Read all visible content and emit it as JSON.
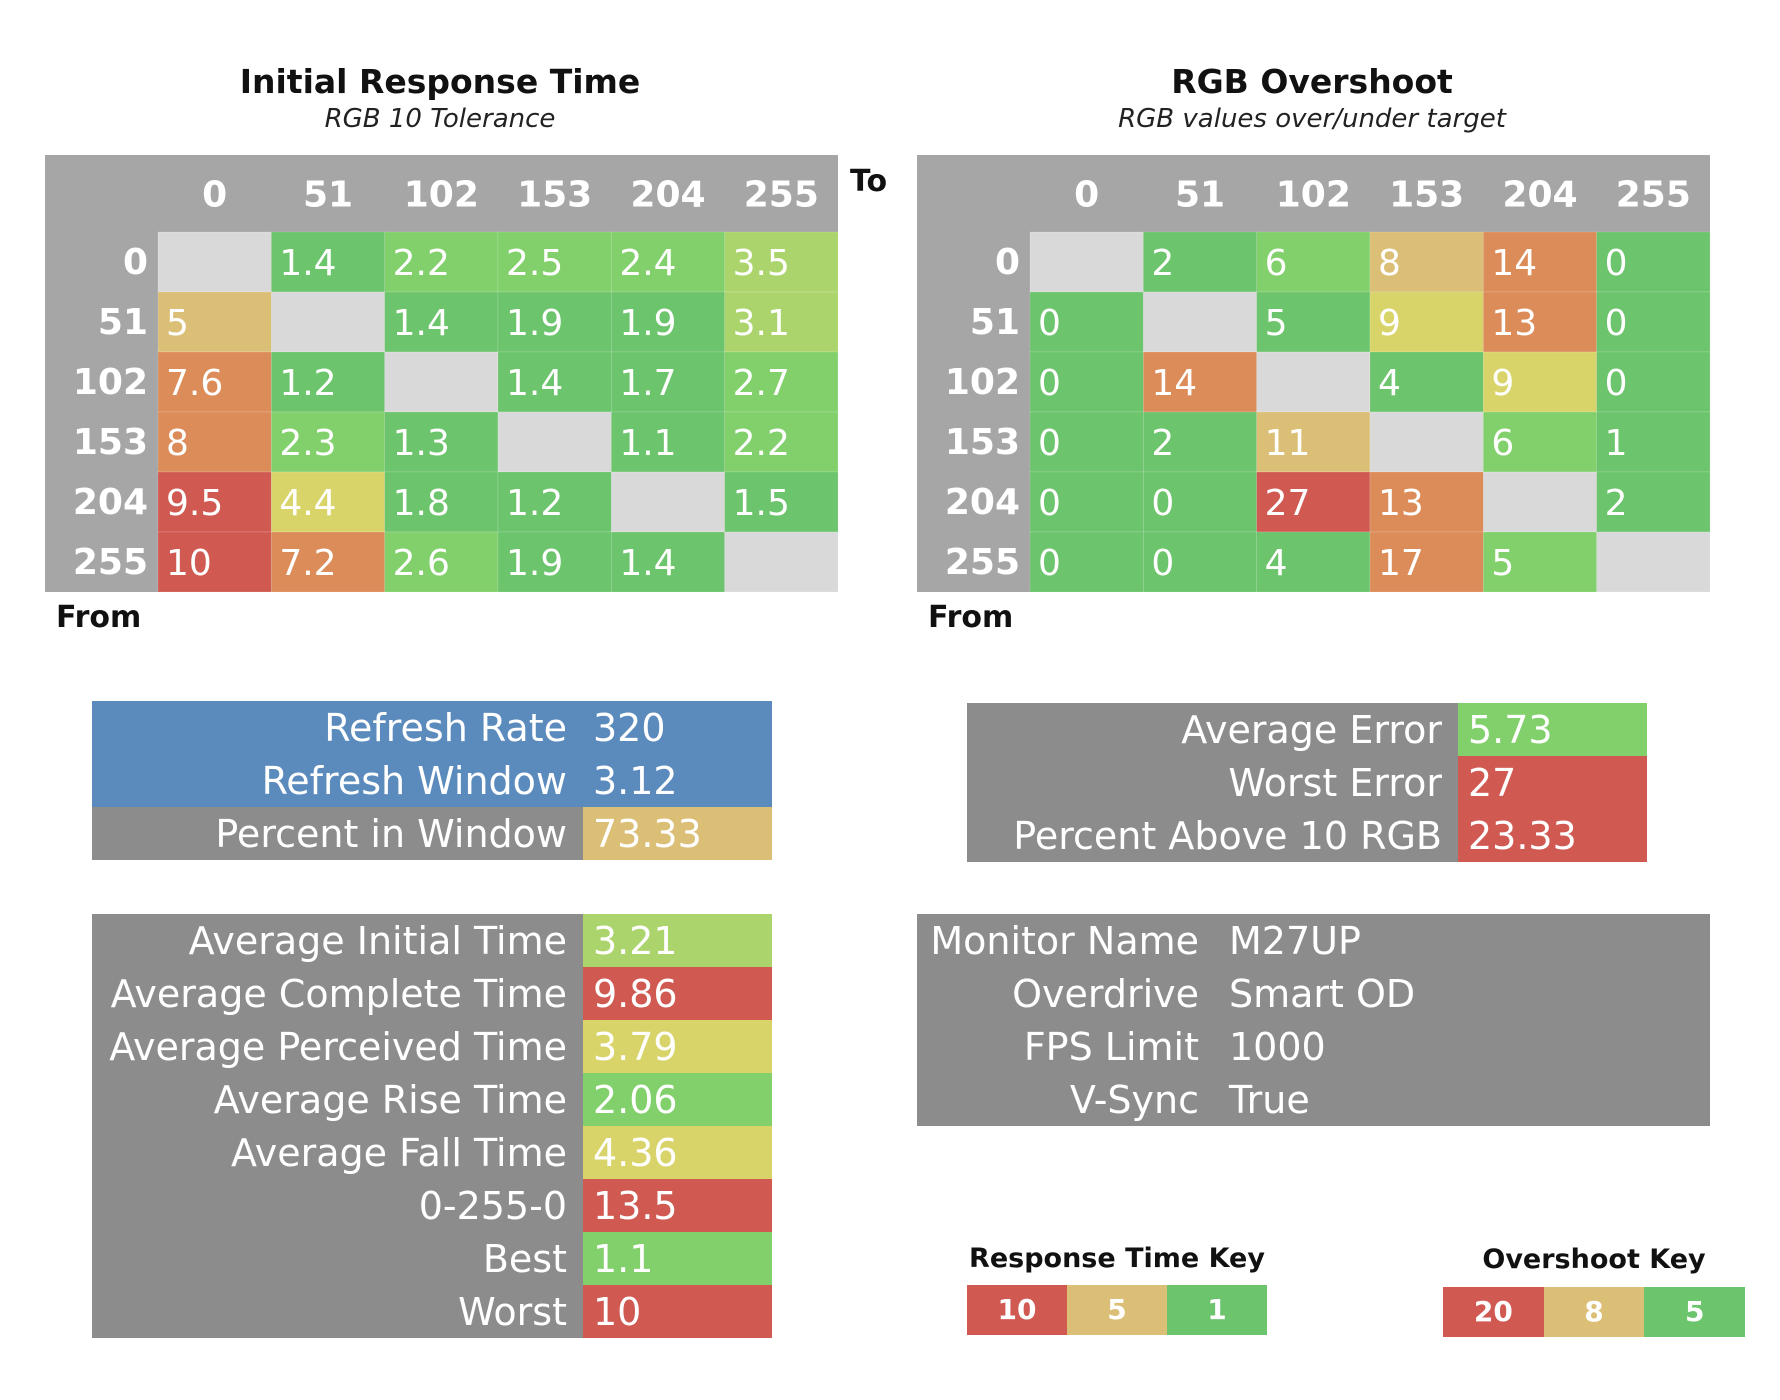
{
  "colors": {
    "bg": "#ffffff",
    "header_gray": "#a6a6a6",
    "diagonal_gray": "#d9d9d9",
    "panel_gray": "#8c8c8c",
    "blue": "#5b8bbd",
    "red": "#d05a52",
    "orange": "#dc8c58",
    "sand": "#dcbf76",
    "yellow": "#d8d46a",
    "lime": "#acd46c",
    "lightgreen": "#82d06c",
    "green": "#6cc46c"
  },
  "axis_words": {
    "to": "To",
    "from_left": "From",
    "from_right": "From"
  },
  "chart_data": [
    {
      "type": "heatmap",
      "title": "Initial Response Time",
      "subtitle": "RGB 10 Tolerance",
      "xlabel": "To",
      "ylabel": "From",
      "columns": [
        "0",
        "51",
        "102",
        "153",
        "204",
        "255"
      ],
      "rows": [
        "0",
        "51",
        "102",
        "153",
        "204",
        "255"
      ],
      "values": [
        [
          "",
          "1.4",
          "2.2",
          "2.5",
          "2.4",
          "3.5"
        ],
        [
          "5",
          "",
          "1.4",
          "1.9",
          "1.9",
          "3.1"
        ],
        [
          "7.6",
          "1.2",
          "",
          "1.4",
          "1.7",
          "2.7"
        ],
        [
          "8",
          "2.3",
          "1.3",
          "",
          "1.1",
          "2.2"
        ],
        [
          "9.5",
          "4.4",
          "1.8",
          "1.2",
          "",
          "1.5"
        ],
        [
          "10",
          "7.2",
          "2.6",
          "1.9",
          "1.4",
          ""
        ]
      ],
      "colors": [
        [
          "diagonal_gray",
          "green",
          "lightgreen",
          "lightgreen",
          "lightgreen",
          "lime"
        ],
        [
          "sand",
          "diagonal_gray",
          "green",
          "green",
          "green",
          "lime"
        ],
        [
          "orange",
          "green",
          "diagonal_gray",
          "green",
          "green",
          "lightgreen"
        ],
        [
          "orange",
          "lightgreen",
          "green",
          "diagonal_gray",
          "green",
          "lightgreen"
        ],
        [
          "red",
          "yellow",
          "green",
          "green",
          "diagonal_gray",
          "green"
        ],
        [
          "red",
          "orange",
          "lightgreen",
          "green",
          "green",
          "diagonal_gray"
        ]
      ]
    },
    {
      "type": "heatmap",
      "title": "RGB Overshoot",
      "subtitle": "RGB values over/under target",
      "ylabel": "From",
      "columns": [
        "0",
        "51",
        "102",
        "153",
        "204",
        "255"
      ],
      "rows": [
        "0",
        "51",
        "102",
        "153",
        "204",
        "255"
      ],
      "values": [
        [
          "",
          "2",
          "6",
          "8",
          "14",
          "0"
        ],
        [
          "0",
          "",
          "5",
          "9",
          "13",
          "0"
        ],
        [
          "0",
          "14",
          "",
          "4",
          "9",
          "0"
        ],
        [
          "0",
          "2",
          "11",
          "",
          "6",
          "1"
        ],
        [
          "0",
          "0",
          "27",
          "13",
          "",
          "2"
        ],
        [
          "0",
          "0",
          "4",
          "17",
          "5",
          ""
        ]
      ],
      "colors": [
        [
          "diagonal_gray",
          "green",
          "lightgreen",
          "sand",
          "orange",
          "green"
        ],
        [
          "green",
          "diagonal_gray",
          "green",
          "yellow",
          "orange",
          "green"
        ],
        [
          "green",
          "orange",
          "diagonal_gray",
          "green",
          "yellow",
          "green"
        ],
        [
          "green",
          "green",
          "sand",
          "diagonal_gray",
          "lightgreen",
          "green"
        ],
        [
          "green",
          "green",
          "red",
          "orange",
          "diagonal_gray",
          "green"
        ],
        [
          "green",
          "green",
          "green",
          "orange",
          "lightgreen",
          "diagonal_gray"
        ]
      ]
    }
  ],
  "refresh_panel": [
    {
      "label": "Refresh Rate",
      "value": "320",
      "label_color": "blue",
      "value_color": "blue"
    },
    {
      "label": "Refresh Window",
      "value": "3.12",
      "label_color": "blue",
      "value_color": "blue"
    },
    {
      "label": "Percent in Window",
      "value": "73.33",
      "label_color": "panel_gray",
      "value_color": "sand"
    }
  ],
  "error_panel": [
    {
      "label": "Average Error",
      "value": "5.73",
      "value_color": "lightgreen"
    },
    {
      "label": "Worst Error",
      "value": "27",
      "value_color": "red"
    },
    {
      "label": "Percent Above 10 RGB",
      "value": "23.33",
      "value_color": "red"
    }
  ],
  "timing_panel": [
    {
      "label": "Average Initial Time",
      "value": "3.21",
      "value_color": "lime"
    },
    {
      "label": "Average Complete Time",
      "value": "9.86",
      "value_color": "red"
    },
    {
      "label": "Average Perceived Time",
      "value": "3.79",
      "value_color": "yellow"
    },
    {
      "label": "Average Rise Time",
      "value": "2.06",
      "value_color": "lightgreen"
    },
    {
      "label": "Average Fall Time",
      "value": "4.36",
      "value_color": "yellow"
    },
    {
      "label": "0-255-0",
      "value": "13.5",
      "value_color": "red"
    },
    {
      "label": "Best",
      "value": "1.1",
      "value_color": "lightgreen"
    },
    {
      "label": "Worst",
      "value": "10",
      "value_color": "red"
    }
  ],
  "monitor_panel": [
    {
      "label": "Monitor Name",
      "value": "M27UP"
    },
    {
      "label": "Overdrive",
      "value": "Smart OD"
    },
    {
      "label": "FPS Limit",
      "value": "1000"
    },
    {
      "label": "V-Sync",
      "value": "True"
    }
  ],
  "response_key": {
    "title": "Response Time Key",
    "cells": [
      {
        "label": "10",
        "color": "red"
      },
      {
        "label": "5",
        "color": "sand"
      },
      {
        "label": "1",
        "color": "green"
      }
    ]
  },
  "overshoot_key": {
    "title": "Overshoot Key",
    "cells": [
      {
        "label": "20",
        "color": "red"
      },
      {
        "label": "8",
        "color": "sand"
      },
      {
        "label": "5",
        "color": "green"
      }
    ]
  }
}
